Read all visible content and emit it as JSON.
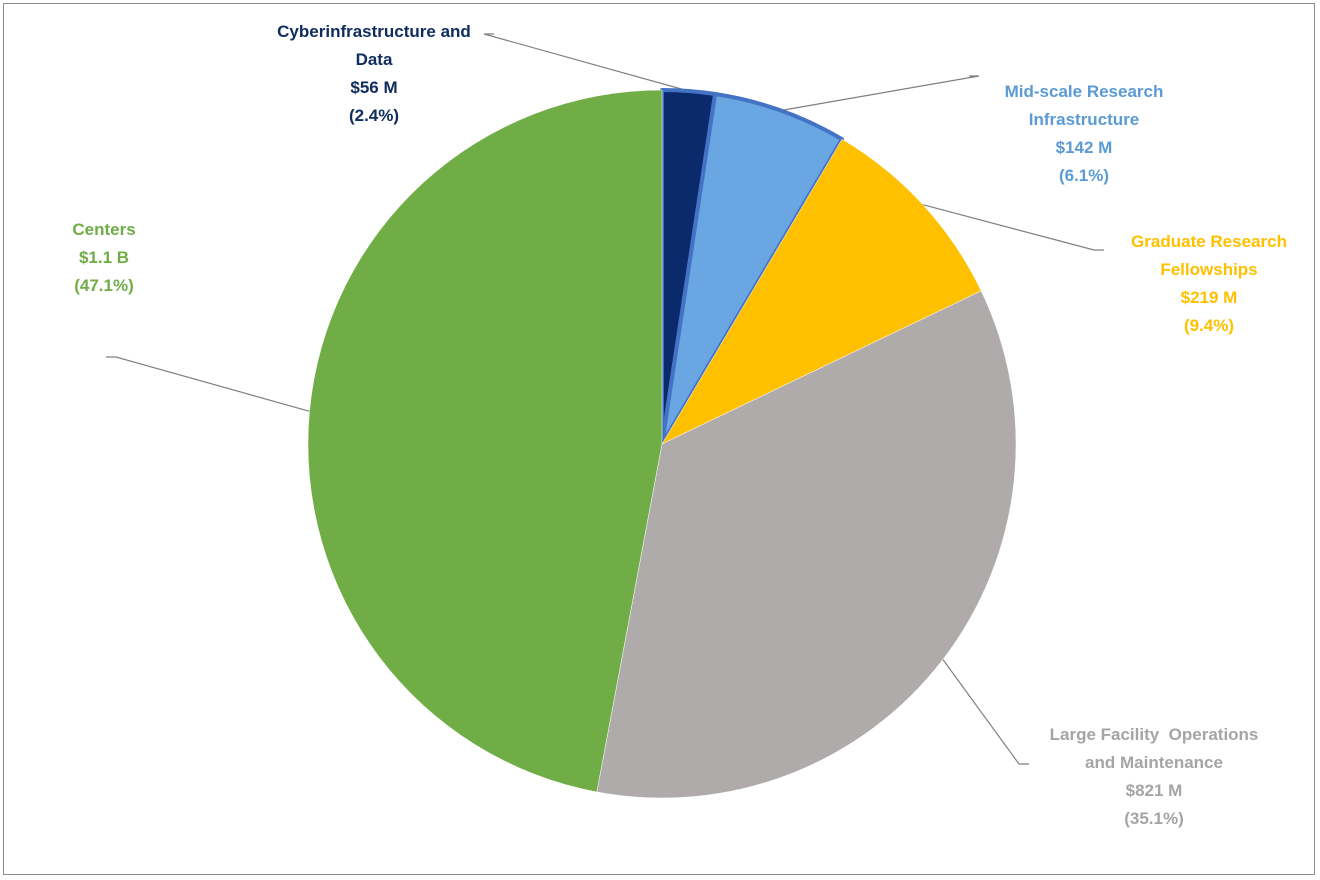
{
  "chart_data": {
    "type": "pie",
    "title": "",
    "start_angle_deg": 0,
    "direction": "clockwise",
    "slices": [
      {
        "name": "Cyberinfrastructure and Data",
        "label_lines": [
          "Cyberinfrastructure and",
          "Data"
        ],
        "value_text": "$56 M",
        "percent_text": "(2.4%)",
        "percent": 2.4,
        "color": "#0b2a6b",
        "label_color": "#102d60",
        "outline": "#4472c4"
      },
      {
        "name": "Mid-scale Research Infrastructure",
        "label_lines": [
          "Mid-scale Research",
          "Infrastructure"
        ],
        "value_text": "$142 M",
        "percent_text": "(6.1%)",
        "percent": 6.1,
        "color": "#6aa6e2",
        "label_color": "#5b9bd5",
        "outline": "#4472c4"
      },
      {
        "name": "Graduate Research Fellowships",
        "label_lines": [
          "Graduate Research",
          "Fellowships"
        ],
        "value_text": "$219 M",
        "percent_text": "(9.4%)",
        "percent": 9.4,
        "color": "#ffc000",
        "label_color": "#ffc000",
        "outline": ""
      },
      {
        "name": "Large Facility Operations and Maintenance",
        "label_lines": [
          "Large Facility  Operations",
          "and Maintenance"
        ],
        "value_text": "$821 M",
        "percent_text": "(35.1%)",
        "percent": 35.1,
        "color": "#afabab",
        "label_color": "#a5a5a5",
        "outline": ""
      },
      {
        "name": "Centers",
        "label_lines": [
          "Centers"
        ],
        "value_text": "$1.1 B",
        "percent_text": "(47.1%)",
        "percent": 47.1,
        "color": "#70ad47",
        "label_color": "#70ad47",
        "outline": ""
      }
    ]
  }
}
